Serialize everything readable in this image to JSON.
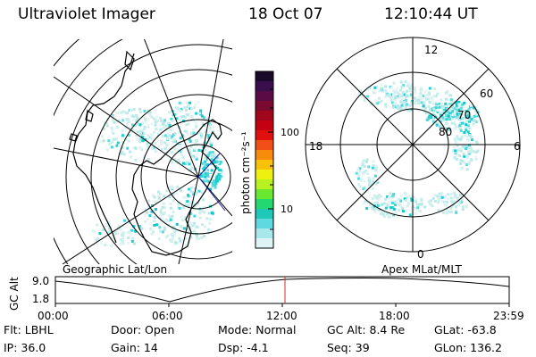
{
  "header": {
    "instrument": "Ultraviolet Imager",
    "date": "18 Oct 07",
    "time": "12:10:44 UT"
  },
  "colorbar": {
    "unit_label": "photon cm⁻²s⁻¹",
    "ticks": [
      "100",
      "10"
    ],
    "colors": [
      "#1a0a2a",
      "#3a0d4d",
      "#5a0b46",
      "#7a0a30",
      "#a0061c",
      "#c40012",
      "#e01010",
      "#f05018",
      "#f88a0c",
      "#f8c008",
      "#eef010",
      "#b8f020",
      "#6ae830",
      "#24d870",
      "#20c8b8",
      "#60d8e0",
      "#a8e8ec",
      "#dff4f4"
    ]
  },
  "geo_panel": {
    "label": "Geographic Lat/Lon"
  },
  "polar_panel": {
    "label": "Apex MLat/MLT",
    "mlt_labels": {
      "top": "12",
      "left": "18",
      "right": "6",
      "bottom": "0"
    },
    "lat_labels": [
      "60",
      "70",
      "80"
    ]
  },
  "orbit_plot": {
    "ylabel": "GC Alt",
    "ytick_top": "9.0",
    "ytick_bottom": "1.8",
    "xticks": [
      "00:00",
      "06:00",
      "12:00",
      "18:00",
      "23:59"
    ],
    "current_time_color": "#d03020"
  },
  "status": {
    "flt": "Flt: LBHL",
    "door": "Door: Open",
    "mode": "Mode: Normal",
    "gc_alt": "GC Alt: 8.4 Re",
    "glat": "GLat: -63.8",
    "ip": "IP: 36.0",
    "gain": "Gain: 14",
    "dsp": "Dsp:   -4.1",
    "seq": "Seq: 39",
    "glon": "GLon: 136.2"
  }
}
